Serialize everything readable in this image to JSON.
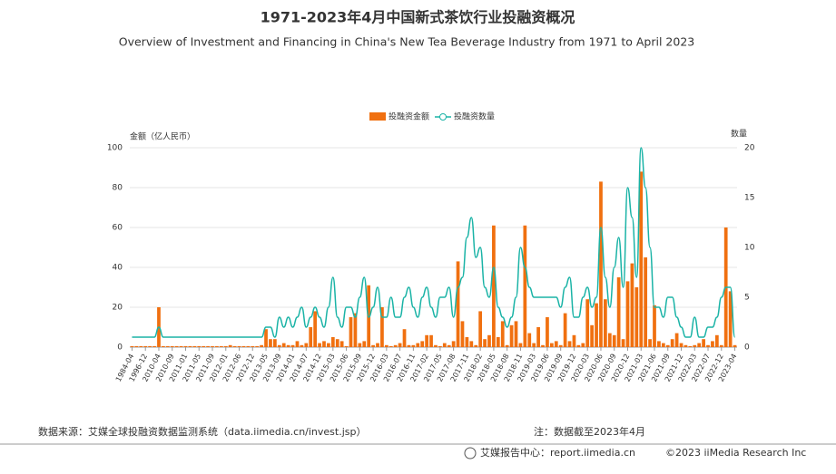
{
  "chart_data": {
    "type": "bar-line",
    "title": "1971-2023年4月中国新式茶饮行业投融资概况",
    "subtitle": "Overview of Investment and Financing in China's New Tea Beverage Industry from 1971 to April 2023",
    "y_label": "金额（亿人民币）",
    "y2_label": "数量",
    "categories": [
      "1984-04",
      null,
      null,
      "1996-12",
      null,
      null,
      "2010-04",
      null,
      null,
      "2010-09",
      null,
      null,
      "2011-01",
      null,
      null,
      "2011-05",
      null,
      null,
      "2011-09",
      null,
      null,
      "2012-01",
      null,
      null,
      "2012-06",
      null,
      null,
      "2012-12",
      null,
      null,
      "2013-05",
      null,
      null,
      "2013-09",
      null,
      null,
      "2014-01",
      null,
      null,
      "2014-07",
      null,
      null,
      "2014-12",
      null,
      null,
      "2015-03",
      null,
      null,
      "2015-06",
      null,
      null,
      "2015-09",
      null,
      null,
      "2015-12",
      null,
      null,
      "2016-03",
      null,
      null,
      "2016-07",
      null,
      null,
      "2016-11",
      null,
      null,
      "2017-02",
      null,
      null,
      "2017-05",
      null,
      null,
      "2017-08",
      null,
      null,
      "2017-11",
      null,
      null,
      "2018-02",
      null,
      null,
      "2018-05",
      null,
      null,
      "2018-08",
      null,
      null,
      "2018-11",
      null,
      null,
      "2019-03",
      null,
      null,
      "2019-06",
      null,
      null,
      "2019-09",
      null,
      null,
      "2019-12",
      null,
      null,
      "2020-03",
      null,
      null,
      "2020-06",
      null,
      null,
      "2020-09",
      null,
      null,
      "2020-12",
      null,
      null,
      "2021-03",
      null,
      null,
      "2021-06",
      null,
      null,
      "2021-09",
      null,
      null,
      "2021-12",
      null,
      null,
      "2022-03",
      null,
      null,
      "2022-07",
      null,
      null,
      "2022-12",
      null,
      null,
      "2023-04"
    ],
    "series": [
      {
        "name": "投融资金额",
        "color": "#f07010",
        "values": [
          0.5,
          0.5,
          0.5,
          0.5,
          0.5,
          0.5,
          20,
          0.5,
          0.5,
          0.5,
          0.5,
          0.5,
          0.5,
          0.5,
          0.5,
          0.5,
          0.5,
          0.5,
          0.5,
          0.5,
          0.5,
          0.5,
          1,
          0.5,
          0.5,
          0.5,
          0.5,
          0.5,
          0.5,
          1,
          9,
          4,
          4,
          1,
          2,
          1,
          1,
          3,
          1,
          2,
          10,
          18,
          2,
          3,
          2,
          5,
          4,
          3,
          0.5,
          15,
          17,
          2,
          3,
          31,
          1,
          2,
          20,
          1,
          0.5,
          1,
          2,
          9,
          1,
          1,
          2,
          3,
          6,
          6,
          1,
          0.5,
          2,
          1,
          3,
          43,
          13,
          5,
          3,
          1,
          18,
          4,
          6,
          61,
          5,
          13,
          1,
          11,
          13,
          2,
          61,
          7,
          2,
          10,
          1,
          15,
          2,
          3,
          1,
          17,
          3,
          6,
          1,
          2,
          24,
          11,
          22,
          83,
          24,
          7,
          6,
          35,
          4,
          33,
          42,
          30,
          88,
          45,
          4,
          21,
          3,
          2,
          1,
          4,
          7,
          2,
          1,
          0.5,
          1,
          2,
          4,
          1,
          3,
          6,
          1,
          60,
          28,
          1
        ]
      },
      {
        "name": "投融资数量",
        "color": "#1ab3a6",
        "axis": "y2",
        "values": [
          1,
          1,
          1,
          1,
          1,
          1,
          2,
          1,
          1,
          1,
          1,
          1,
          1,
          1,
          1,
          1,
          1,
          1,
          1,
          1,
          1,
          1,
          1,
          1,
          1,
          1,
          1,
          1,
          1,
          1,
          2,
          2,
          1,
          3,
          2,
          3,
          2,
          3,
          4,
          2,
          3,
          4,
          3,
          2,
          4,
          7,
          3,
          2,
          4,
          4,
          3,
          5,
          7,
          3,
          4,
          6,
          3,
          3,
          5,
          3,
          3,
          5,
          6,
          4,
          3,
          5,
          6,
          4,
          3,
          5,
          5,
          6,
          3,
          6,
          7,
          11,
          13,
          9,
          10,
          6,
          5,
          8,
          4,
          3,
          2,
          3,
          5,
          10,
          8,
          6,
          5,
          5,
          5,
          5,
          5,
          5,
          4,
          6,
          7,
          3,
          3,
          5,
          6,
          4,
          5,
          12,
          7,
          4,
          8,
          11,
          6,
          16,
          13,
          7,
          20,
          16,
          10,
          4,
          4,
          3,
          5,
          5,
          3,
          2,
          1,
          1,
          3,
          1,
          1,
          2,
          2,
          3,
          5,
          6,
          6,
          1
        ]
      }
    ],
    "ylim": [
      0,
      100
    ],
    "yticks": [
      0,
      20,
      40,
      60,
      80,
      100
    ],
    "y2lim": [
      0,
      20
    ],
    "y2ticks": [
      0,
      5,
      10,
      15,
      20
    ],
    "grid": true,
    "source": "数据来源：艾媒全球投融资数据监测系统（data.iimedia.cn/invest.jsp）",
    "note": "注：数据截至2023年4月",
    "brand": "艾媒报告中心：report.iimedia.cn",
    "copyright": "©2023  iiMedia Research  Inc"
  }
}
